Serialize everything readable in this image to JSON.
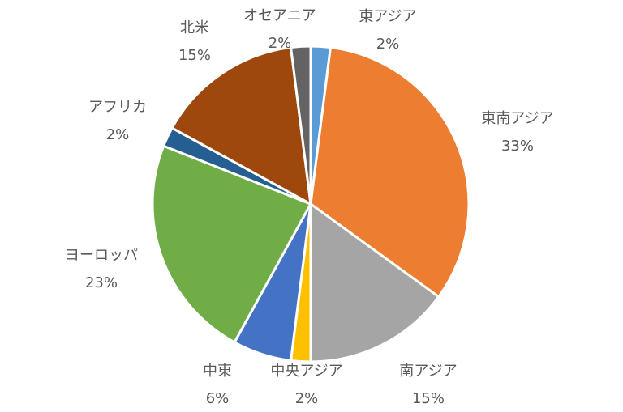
{
  "chart_data": {
    "type": "pie",
    "title": "",
    "start_angle_deg": 0,
    "direction": "clockwise",
    "slices": [
      {
        "label": "東アジア",
        "value": 2,
        "value_label": "2%",
        "color": "#5b9bd5"
      },
      {
        "label": "東南アジア",
        "value": 33,
        "value_label": "33%",
        "color": "#ed7d31"
      },
      {
        "label": "南アジア",
        "value": 15,
        "value_label": "15%",
        "color": "#a5a5a5"
      },
      {
        "label": "中央アジア",
        "value": 2,
        "value_label": "2%",
        "color": "#ffc000"
      },
      {
        "label": "中東",
        "value": 6,
        "value_label": "6%",
        "color": "#4472c4"
      },
      {
        "label": "ヨーロッパ",
        "value": 23,
        "value_label": "23%",
        "color": "#70ad47"
      },
      {
        "label": "アフリカ",
        "value": 2,
        "value_label": "2%",
        "color": "#255e91"
      },
      {
        "label": "北米",
        "value": 15,
        "value_label": "15%",
        "color": "#9e480e"
      },
      {
        "label": "オセアニア",
        "value": 2,
        "value_label": "2%",
        "color": "#636363"
      }
    ]
  }
}
